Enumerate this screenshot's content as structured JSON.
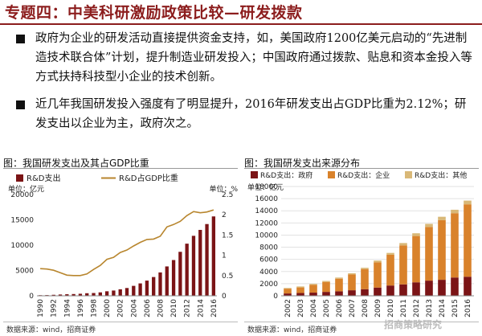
{
  "header": {
    "title": "专题四：中美科研激励政策比较—研发拨款"
  },
  "bullets": [
    "政府为企业的研发活动直接提供资金支持，如，美国政府1200亿美元启动的“先进制造技术联合体”计划，提升制造业研发投入；中国政府通过拨款、贴息和资本金投入等方式扶持科技型小企业的技术创新。",
    "近几年我国研发投入强度有了明显提升，2016年研发支出占GDP比重为2.12%；研发支出以企业为主，政府次之。"
  ],
  "figures": {
    "left_title": "图：我国研发支出及其占GDP比重",
    "right_title": "图：我国研发支出来源分布",
    "left_source": "数据来源：wind，招商证券",
    "right_source": "数据来源：wind，招商证券"
  },
  "watermark": "招商策略研究",
  "chart_data": [
    {
      "type": "bar",
      "title": "我国研发支出及其占GDP比重",
      "y_left_unit": "单位：亿元",
      "y_right_unit": "单位：%",
      "x": [
        "1990",
        "1991",
        "1992",
        "1993",
        "1994",
        "1995",
        "1996",
        "1997",
        "1998",
        "1999",
        "2000",
        "2001",
        "2002",
        "2003",
        "2004",
        "2005",
        "2006",
        "2007",
        "2008",
        "2009",
        "2010",
        "2011",
        "2012",
        "2013",
        "2014",
        "2015",
        "2016"
      ],
      "x_tick_labels": [
        "1990",
        "1992",
        "1994",
        "1996",
        "1998",
        "2000",
        "2002",
        "2004",
        "2006",
        "2008",
        "2010",
        "2012",
        "2014",
        "2016"
      ],
      "ylim_left": [
        0,
        20000
      ],
      "yticks_left": [
        0,
        5000,
        10000,
        15000,
        20000
      ],
      "ylim_right": [
        0,
        2.5
      ],
      "yticks_right": [
        0,
        0.5,
        1,
        1.5,
        2,
        2.5
      ],
      "series": [
        {
          "name": "R&D支出",
          "type": "bar",
          "axis": "left",
          "color": "#7b1416",
          "values": [
            125,
            143,
            199,
            256,
            310,
            349,
            405,
            509,
            551,
            679,
            896,
            1043,
            1288,
            1540,
            1966,
            2450,
            3003,
            3710,
            4616,
            5802,
            7063,
            8687,
            10298,
            11847,
            13016,
            14170,
            15677
          ]
        },
        {
          "name": "R&D占GDP比重",
          "type": "line",
          "axis": "right",
          "color": "#b8862e",
          "values": [
            0.67,
            0.66,
            0.63,
            0.57,
            0.51,
            0.5,
            0.5,
            0.54,
            0.65,
            0.75,
            0.9,
            0.95,
            1.07,
            1.13,
            1.23,
            1.32,
            1.39,
            1.4,
            1.47,
            1.7,
            1.76,
            1.84,
            1.98,
            2.08,
            2.05,
            2.07,
            2.12
          ]
        }
      ]
    },
    {
      "type": "bar",
      "stacked": true,
      "title": "我国研发支出来源分布",
      "y_unit": "单位：亿元",
      "x": [
        "2002",
        "2003",
        "2004",
        "2005",
        "2006",
        "2007",
        "2008",
        "2009",
        "2010",
        "2011",
        "2012",
        "2013",
        "2014",
        "2015",
        "2016"
      ],
      "ylim": [
        0,
        18000
      ],
      "yticks": [
        0,
        2000,
        4000,
        6000,
        8000,
        10000,
        12000,
        14000,
        16000,
        18000
      ],
      "series": [
        {
          "name": "R&D支出：政府",
          "color": "#7b1416",
          "values": [
            385,
            460,
            524,
            645,
            742,
            913,
            1089,
            1358,
            1696,
            1883,
            2221,
            2500,
            2636,
            3013,
            3141
          ]
        },
        {
          "name": "R&D支出：企业",
          "color": "#d9822b",
          "values": [
            786,
            915,
            1291,
            1643,
            2073,
            2611,
            3311,
            4163,
            5064,
            6420,
            7625,
            8838,
            9816,
            10589,
            11924
          ]
        },
        {
          "name": "R&D支出：其他",
          "color": "#d9b877",
          "values": [
            117,
            165,
            151,
            162,
            188,
            186,
            216,
            281,
            303,
            384,
            452,
            509,
            564,
            568,
            612
          ]
        }
      ]
    }
  ]
}
